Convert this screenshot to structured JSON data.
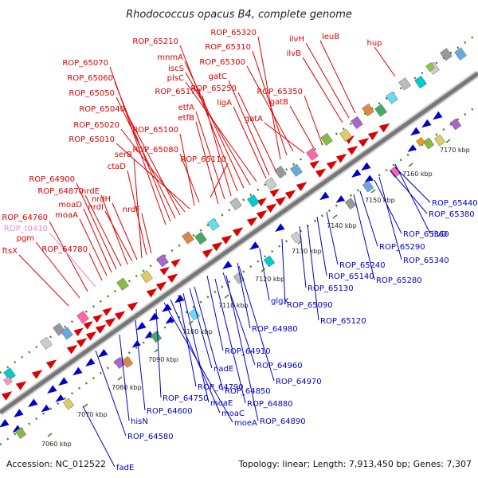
{
  "title": "Rhodococcus opacus B4, complete genome",
  "accession": "Accession: NC_012522",
  "topology": "Topology: linear; Length: 7,913,450 bp; Genes: 7,307",
  "colors": {
    "red": "#dd0000",
    "blue": "#0000cc",
    "pink": "#ee88cc",
    "dot": "#3a8a1a"
  },
  "ticks": [
    "7060 kbp",
    "7070 kbp",
    "7080 kbp",
    "7090 kbp",
    "7100 kbp",
    "7110 kbp",
    "7120 kbp",
    "7130 kbp",
    "7140 kbp",
    "7150 kbp",
    "7160 kbp",
    "7170 kbp"
  ],
  "red_labels": [
    "ROP_65320",
    "ROP_65310",
    "ROP_65300",
    "ROP_65210",
    "mnmA",
    "iscS",
    "plsC",
    "gatC",
    "ROP_65250",
    "ROP_65170",
    "ligA",
    "etfA",
    "etfB",
    "ROP_65350",
    "gatB",
    "gatA",
    "ilvH",
    "leuB",
    "ilvB",
    "hup",
    "ROP_65070",
    "ROP_65060",
    "ROP_65050",
    "ROP_65040",
    "ROP_65020",
    "ROP_65010",
    "ROP_65100",
    "ROP_65080",
    "ROP_65110",
    "serB",
    "ctaD",
    "nrdE",
    "nrdI",
    "nrdH",
    "nrdF",
    "ROP_64900",
    "ROP_64870",
    "moaD",
    "moaA",
    "ROP_64760",
    "ROP_t0410",
    "pgm",
    "ftsX",
    "ROP_64780"
  ],
  "blue_labels": [
    "ROP_65440",
    "ROP_65380",
    "ROP_65360",
    "ilvD",
    "ROP_65290",
    "ROP_65340",
    "ROP_65280",
    "ROP_65240",
    "ROP_65140",
    "ROP_65130",
    "ROP_65090",
    "ROP_65120",
    "glgX",
    "ROP_64980",
    "ROP_64910",
    "ROP_64960",
    "ROP_64970",
    "nadE",
    "ROP_64850",
    "ROP_64790",
    "ROP_64750",
    "moaE",
    "ROP_64880",
    "moaC",
    "ROP_64890",
    "moeA",
    "ROP_64600",
    "hisN",
    "ROP_64580",
    "fadE"
  ]
}
